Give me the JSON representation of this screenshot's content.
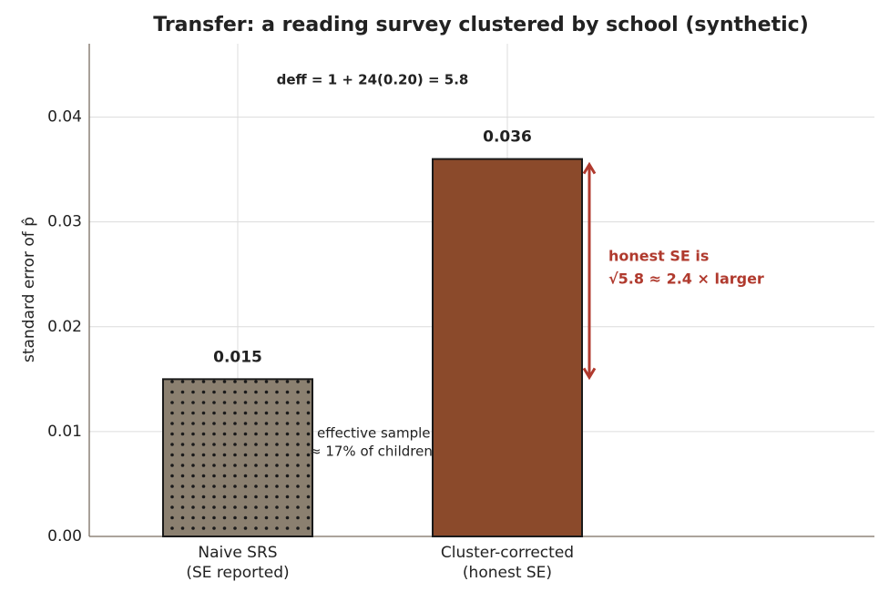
{
  "chart_data": {
    "type": "bar",
    "title": "Transfer: a reading survey clustered by school (synthetic)",
    "y_label": "standard error of p̂",
    "categories": [
      "Naive SRS\n(SE reported)",
      "Cluster-corrected\n(honest SE)"
    ],
    "values": [
      0.015,
      0.036
    ],
    "colors": [
      "#8b8070",
      "#8b4a2b"
    ],
    "hatch": [
      "dots",
      "none"
    ],
    "ylim": [
      0,
      0.047
    ],
    "yticks": [
      {
        "value": 0,
        "label": "0.00"
      },
      0.01,
      0.02,
      0.03,
      0.04
    ],
    "grid": true,
    "annotations": {
      "deff": "deff = 1 + 24(0.20) = 5.8",
      "effective_1": "effective sample",
      "effective_2": "≈ 17% of children",
      "honest_1": "honest SE is",
      "honest_2": "√5.8 ≈ 2.4 ×  larger"
    }
  }
}
